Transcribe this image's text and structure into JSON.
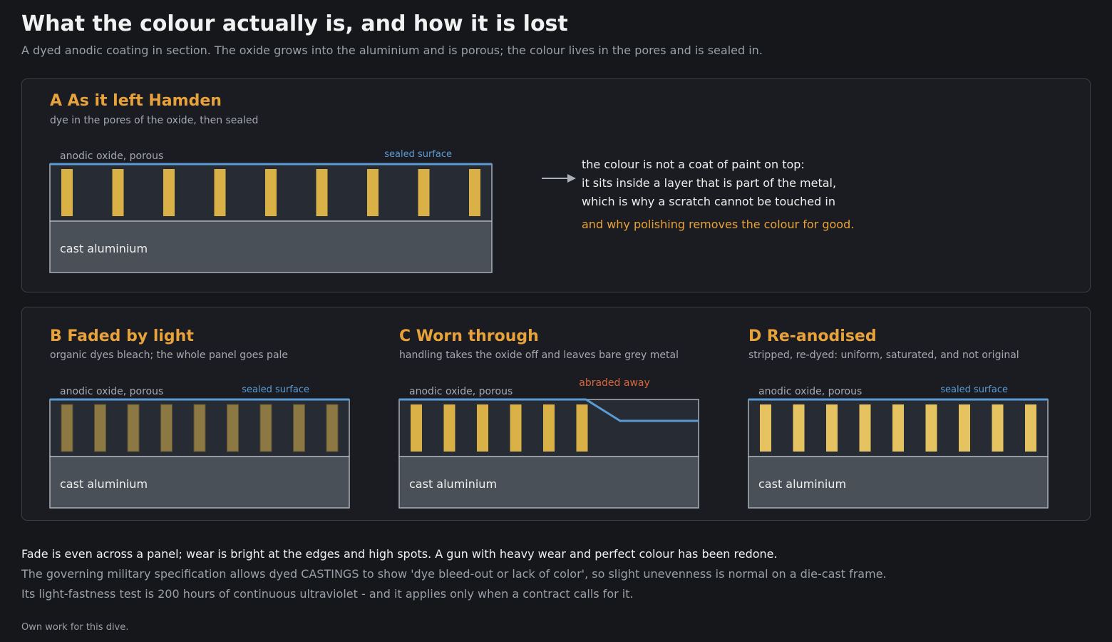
{
  "header": {
    "title": "What the colour actually is, and how it is lost",
    "subtitle": "A dyed anodic coating in section. The oxide grows into the aluminium and is porous; the colour lives in the pores and is sealed in."
  },
  "labels": {
    "oxide": "anodic oxide, porous",
    "sealed": "sealed surface",
    "base": "cast aluminium",
    "abraded": "abraded away"
  },
  "colors": {
    "dye_fresh": "#d9b146",
    "dye_faded": "#8c7843",
    "dye_redone": "#e6c361",
    "seal": "#5b9bd5",
    "oxide": "#272b33",
    "metal": "#4a5058",
    "abraded": "#d9663c",
    "accent": "#e8a23b"
  },
  "panels": {
    "a": {
      "title": "A As it left Hamden",
      "desc": "dye in the pores of the oxide, then sealed"
    },
    "b": {
      "title": "B Faded by light",
      "desc": "organic dyes bleach; the whole panel goes pale"
    },
    "c": {
      "title": "C Worn through",
      "desc": "handling takes the oxide off and leaves bare grey metal"
    },
    "d": {
      "title": "D Re-anodised",
      "desc": "stripped, re-dyed: uniform, saturated, and not original"
    }
  },
  "explanation": {
    "line1": "the colour is not a coat of paint on top:",
    "line2": "it sits inside a layer that is part of the metal,",
    "line3": "which is why a scratch cannot be touched in",
    "line4": "and why polishing removes the colour for good."
  },
  "footer": {
    "line1": "Fade is even across a panel; wear is bright at the edges and high spots. A gun with heavy wear and perfect colour has been redone.",
    "line2": "The governing military specification allows dyed CASTINGS to show 'dye bleed-out or lack of color', so slight unevenness is normal on a die-cast frame.",
    "line3": "Its light-fastness test is 200 hours of continuous ultraviolet - and it applies only when a contract calls for it.",
    "credit": "Own work for this dive."
  }
}
